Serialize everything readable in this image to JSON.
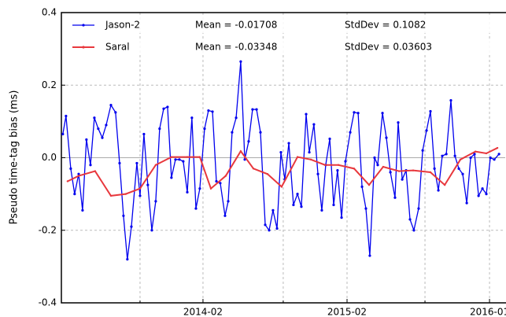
{
  "chart_data": {
    "type": "line",
    "y_label": "Pseudo time-tag bias (ms)",
    "xlim": [
      2013.1,
      2016.181
    ],
    "ylim": [
      -0.4,
      0.4
    ],
    "xticks": [
      {
        "value": 2014.083,
        "label": "2014-02"
      },
      {
        "value": 2015.083,
        "label": "2015-02"
      },
      {
        "value": 2016.072,
        "label": "2016-01"
      }
    ],
    "x_minor_ticks": [
      2013.646,
      2014.64,
      2015.624
    ],
    "yticks": [
      0.4,
      0.2,
      {
        "value": 0,
        "label": "0.0"
      },
      -0.2,
      -0.4
    ],
    "grid": true,
    "legend": "upper left",
    "series": [
      {
        "name": "Jason-2",
        "color": "#0000ee",
        "mean_label": "Mean = -0.01708",
        "std_label": "StdDev = 0.1082",
        "x": [
          2013.11,
          2013.132,
          2013.165,
          2013.192,
          2013.22,
          2013.247,
          2013.274,
          2013.302,
          2013.329,
          2013.356,
          2013.384,
          2013.411,
          2013.444,
          2013.476,
          2013.504,
          2013.531,
          2013.558,
          2013.586,
          2013.624,
          2013.646,
          2013.673,
          2013.7,
          2013.728,
          2013.755,
          2013.782,
          2013.81,
          2013.837,
          2013.864,
          2013.892,
          2013.919,
          2013.946,
          2013.974,
          2014.006,
          2014.034,
          2014.061,
          2014.094,
          2014.121,
          2014.149,
          2014.176,
          2014.203,
          2014.236,
          2014.258,
          2014.285,
          2014.313,
          2014.345,
          2014.373,
          2014.4,
          2014.427,
          2014.455,
          2014.482,
          2014.515,
          2014.542,
          2014.569,
          2014.597,
          2014.624,
          2014.651,
          2014.679,
          2014.711,
          2014.739,
          2014.766,
          2014.799,
          2014.821,
          2014.853,
          2014.881,
          2014.908,
          2014.935,
          2014.963,
          2014.99,
          2015.017,
          2015.045,
          2015.072,
          2015.105,
          2015.132,
          2015.16,
          2015.187,
          2015.214,
          2015.241,
          2015.274,
          2015.296,
          2015.329,
          2015.356,
          2015.384,
          2015.416,
          2015.438,
          2015.466,
          2015.493,
          2015.52,
          2015.547,
          2015.58,
          2015.608,
          2015.635,
          2015.662,
          2015.69,
          2015.717,
          2015.744,
          2015.772,
          2015.804,
          2015.832,
          2015.859,
          2015.886,
          2015.914,
          2015.941,
          2015.968,
          2015.996,
          2016.023,
          2016.05,
          2016.078,
          2016.105,
          2016.138
        ],
        "values": [
          0.065,
          0.115,
          -0.03,
          -0.1,
          -0.045,
          -0.145,
          0.05,
          -0.02,
          0.11,
          0.08,
          0.055,
          0.09,
          0.145,
          0.125,
          -0.015,
          -0.16,
          -0.28,
          -0.19,
          -0.015,
          -0.105,
          0.065,
          -0.075,
          -0.2,
          -0.12,
          0.08,
          0.135,
          0.14,
          -0.055,
          -0.005,
          -0.005,
          -0.01,
          -0.095,
          0.11,
          -0.14,
          -0.085,
          0.08,
          0.13,
          0.127,
          -0.065,
          -0.07,
          -0.16,
          -0.12,
          0.07,
          0.11,
          0.265,
          -0.005,
          0.045,
          0.133,
          0.133,
          0.07,
          -0.185,
          -0.2,
          -0.145,
          -0.195,
          0.015,
          -0.06,
          0.04,
          -0.13,
          -0.1,
          -0.135,
          0.12,
          0.015,
          0.092,
          -0.045,
          -0.145,
          -0.02,
          0.052,
          -0.13,
          -0.035,
          -0.165,
          -0.01,
          0.07,
          0.125,
          0.123,
          -0.08,
          -0.14,
          -0.27,
          0.0,
          -0.02,
          0.123,
          0.055,
          -0.04,
          -0.11,
          0.097,
          -0.06,
          -0.035,
          -0.17,
          -0.2,
          -0.14,
          0.02,
          0.075,
          0.128,
          -0.03,
          -0.09,
          0.005,
          0.01,
          0.158,
          0.005,
          -0.03,
          -0.045,
          -0.125,
          0.0,
          0.01,
          -0.105,
          -0.085,
          -0.1,
          0.0,
          -0.005,
          0.01
        ]
      },
      {
        "name": "Saral",
        "color": "#e8383d",
        "mean_label": "Mean = -0.03348",
        "std_label": "StdDev = 0.03603",
        "x": [
          2013.143,
          2013.22,
          2013.334,
          2013.444,
          2013.547,
          2013.646,
          2013.755,
          2013.864,
          2013.974,
          2014.061,
          2014.138,
          2014.241,
          2014.345,
          2014.433,
          2014.531,
          2014.629,
          2014.739,
          2014.832,
          2014.93,
          2015.023,
          2015.132,
          2015.236,
          2015.334,
          2015.444,
          2015.542,
          2015.662,
          2015.761,
          2015.87,
          2015.974,
          2016.05,
          2016.127
        ],
        "values": [
          -0.065,
          -0.05,
          -0.037,
          -0.105,
          -0.1,
          -0.085,
          -0.02,
          0.002,
          0.002,
          0.002,
          -0.085,
          -0.05,
          0.018,
          -0.03,
          -0.045,
          -0.08,
          0.002,
          -0.005,
          -0.02,
          -0.02,
          -0.03,
          -0.075,
          -0.025,
          -0.037,
          -0.035,
          -0.04,
          -0.075,
          -0.005,
          0.017,
          0.012,
          0.027
        ]
      }
    ]
  }
}
